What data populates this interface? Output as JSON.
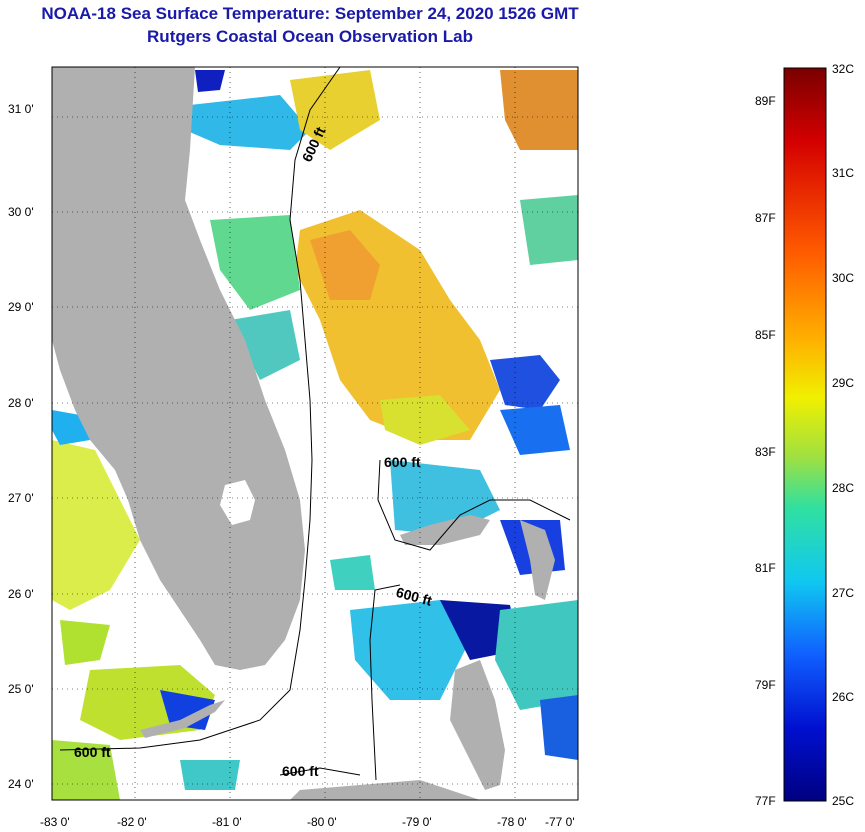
{
  "header": {
    "title": "NOAA-18 Sea Surface Temperature:  September 24, 2020 1526 GMT",
    "subtitle": "Rutgers Coastal Ocean Observation Lab"
  },
  "map": {
    "lon_ticks": [
      "-83 0'",
      "-82 0'",
      "-81 0'",
      "-80 0'",
      "-79 0'",
      "-78 0'",
      "-77 0'"
    ],
    "lat_ticks": [
      "31 0'",
      "30 0'",
      "29 0'",
      "28 0'",
      "27 0'",
      "26 0'",
      "25 0'",
      "24 0'"
    ],
    "contour_labels": [
      "600 ft",
      "600 ft",
      "600 ft",
      "600 ft",
      "600 ft"
    ],
    "colors": {
      "land": "#b0b0b0",
      "cloud": "#ffffff",
      "grid": "#000000"
    }
  },
  "colorbar": {
    "celsius_labels": [
      "32C",
      "31C",
      "30C",
      "29C",
      "28C",
      "27C",
      "26C",
      "25C"
    ],
    "fahrenheit_labels": [
      "89F",
      "87F",
      "85F",
      "83F",
      "81F",
      "79F",
      "77F"
    ],
    "gradient_colors": [
      "#7a0000",
      "#d40000",
      "#ff5a00",
      "#ffb000",
      "#f0f000",
      "#a0e040",
      "#30e0a0",
      "#10c8f0",
      "#1060ff",
      "#0010d0",
      "#000080"
    ]
  }
}
